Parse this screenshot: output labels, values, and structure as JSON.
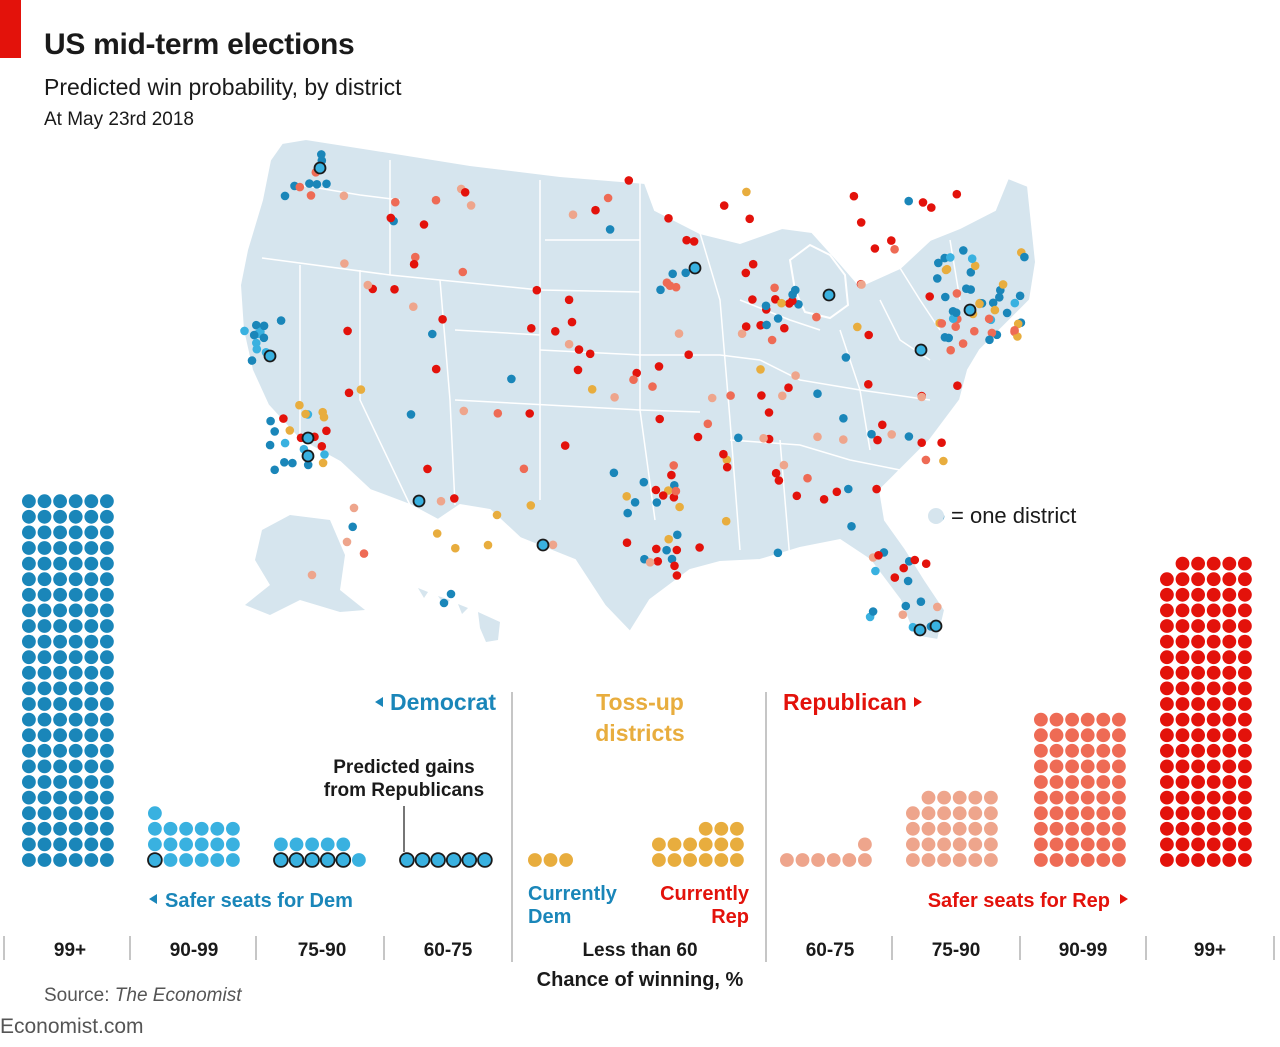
{
  "header": {
    "title": "US mid-term elections",
    "subtitle": "Predicted win probability, by district",
    "date": "At May 23rd 2018"
  },
  "colors": {
    "dem_safe": "#1a86b9",
    "dem_mid": "#39b1e0",
    "tossup": "#e8ad3e",
    "rep_light": "#eea58c",
    "rep_mid": "#ee6b55",
    "rep_safe": "#e3120b",
    "land": "#d6e5ee",
    "accent": "#e3120b"
  },
  "map": {
    "legend_label": "= one district"
  },
  "labels": {
    "democrat": "Democrat",
    "republican": "Republican",
    "tossup_line1": "Toss-up",
    "tossup_line2": "districts",
    "gains_line1": "Predicted gains",
    "gains_line2": "from Republicans",
    "safer_dem": "Safer seats for Dem",
    "safer_rep": "Safer seats for Rep",
    "currently_dem_1": "Currently",
    "currently_dem_2": "Dem",
    "currently_rep_1": "Currently",
    "currently_rep_2": "Rep",
    "axis_title": "Chance of winning, %"
  },
  "chart_data": {
    "type": "dot-histogram",
    "x_label": "Chance of winning, %",
    "categories": [
      "99+",
      "90-99",
      "75-90",
      "60-75",
      "Less than 60",
      "60-75",
      "75-90",
      "90-99",
      "99+"
    ],
    "series": [
      {
        "name": "Democrat",
        "category": "99+",
        "count": 144
      },
      {
        "name": "Democrat",
        "category": "90-99",
        "count": 19,
        "predicted_gains": 1
      },
      {
        "name": "Democrat",
        "category": "75-90",
        "count": 11,
        "predicted_gains": 5
      },
      {
        "name": "Democrat",
        "category": "60-75",
        "count": 6,
        "predicted_gains": 6
      },
      {
        "name": "Currently Dem",
        "category": "Less than 60",
        "count": 3
      },
      {
        "name": "Currently Rep",
        "category": "Less than 60",
        "count": 15
      },
      {
        "name": "Republican",
        "category": "60-75",
        "count": 7
      },
      {
        "name": "Republican",
        "category": "75-90",
        "count": 29
      },
      {
        "name": "Republican",
        "category": "90-99",
        "count": 60
      },
      {
        "name": "Republican",
        "category": "99+",
        "count": 119
      }
    ]
  },
  "source": {
    "prefix": "Source: ",
    "name": "The Economist"
  },
  "footer": "Economist.com"
}
